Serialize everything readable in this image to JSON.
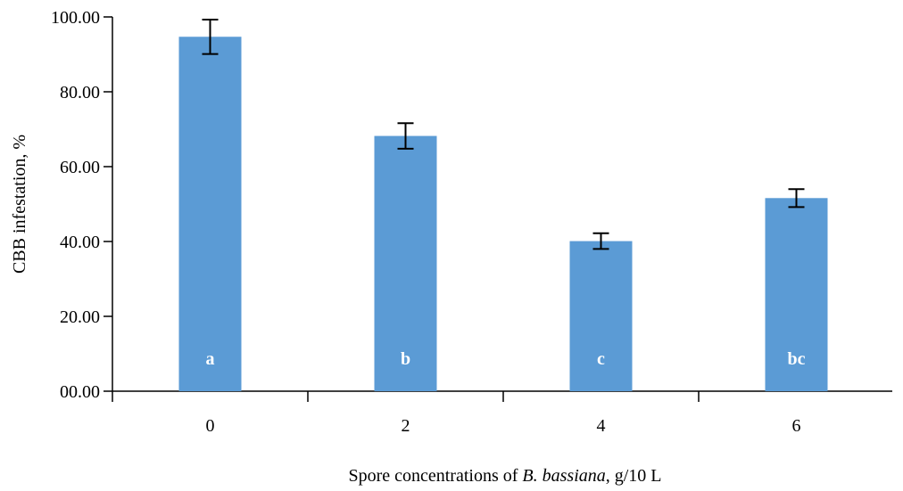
{
  "chart_data": {
    "type": "bar",
    "categories": [
      "0",
      "2",
      "4",
      "6"
    ],
    "values": [
      94.7,
      68.2,
      40.1,
      51.6
    ],
    "errors": [
      4.6,
      3.4,
      2.1,
      2.4
    ],
    "significance_letters": [
      "a",
      "b",
      "c",
      "bc"
    ],
    "ylabel": "CBB infestation, %",
    "xlabel": {
      "prefix": "Spore concentrations of ",
      "italic": "B. bassiana",
      "suffix": ", g/10 L"
    },
    "ylim": [
      0,
      100
    ],
    "yticks": [
      "00.00",
      "20.00",
      "40.00",
      "60.00",
      "80.00",
      "100.00"
    ],
    "bar_color": "#5b9bd5",
    "grid": false,
    "legend": "none"
  }
}
